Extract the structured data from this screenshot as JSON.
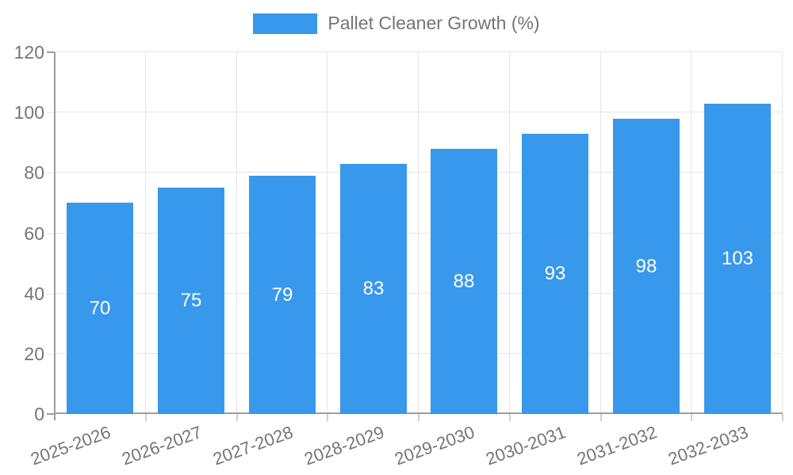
{
  "chart_data": {
    "type": "bar",
    "title": "",
    "categories": [
      "2025-2026",
      "2026-2027",
      "2027-2028",
      "2028-2029",
      "2029-2030",
      "2030-2031",
      "2031-2032",
      "2032-2033"
    ],
    "series": [
      {
        "name": "Pallet Cleaner Growth (%)",
        "values": [
          70,
          75,
          79,
          83,
          88,
          93,
          98,
          103
        ]
      }
    ],
    "xlabel": "",
    "ylabel": "",
    "ylim": [
      0,
      120
    ],
    "yticks": [
      0,
      20,
      40,
      60,
      80,
      100,
      120
    ],
    "grid": true,
    "legend_position": "top-center",
    "value_label_position": "inside-center",
    "x_tick_rotation_deg": -20
  },
  "colors": {
    "bar": "#3898EC",
    "gridline": "#E6E6E6",
    "axis": "#9E9E9E",
    "tickmark": "#CFCFCF",
    "tick_text": "#757575",
    "value_label": "#FFFFFF",
    "background": "#FFFFFF"
  }
}
